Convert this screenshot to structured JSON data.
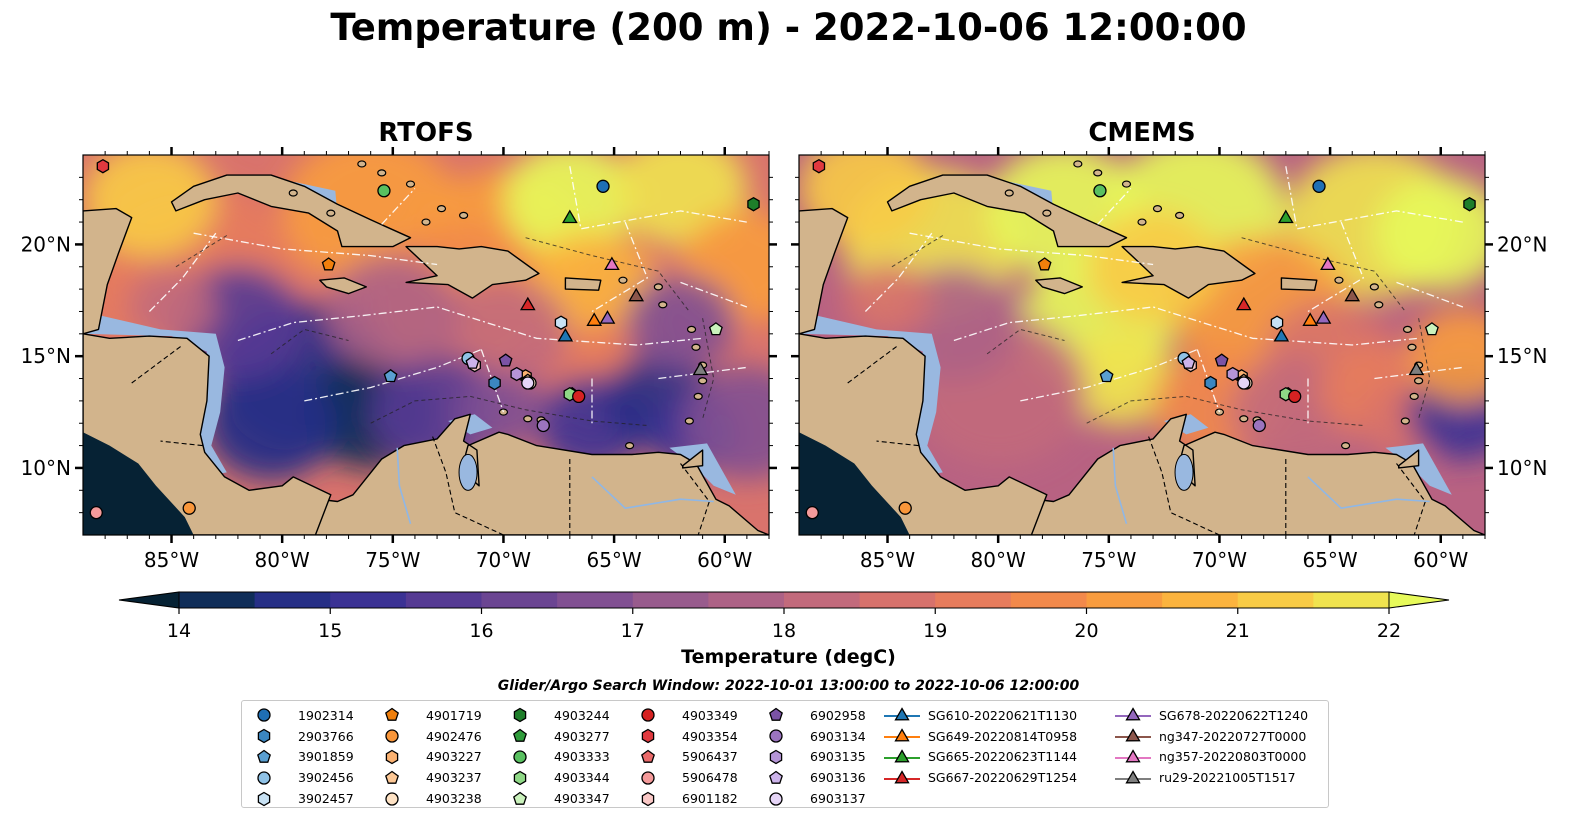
{
  "title": "Temperature (200 m) - 2022-10-06 12:00:00",
  "panels": [
    {
      "title": "RTOFS"
    },
    {
      "title": "CMEMS"
    }
  ],
  "map_axes": {
    "lon_ticks": [
      "85°W",
      "80°W",
      "75°W",
      "70°W",
      "65°W",
      "60°W"
    ],
    "lat_ticks": [
      "20°N",
      "15°N",
      "10°N"
    ],
    "lon_range": [
      -89,
      -58
    ],
    "lat_range": [
      7,
      24
    ]
  },
  "colorbar": {
    "label": "Temperature (degC)",
    "ticks": [
      "14",
      "15",
      "16",
      "17",
      "18",
      "19",
      "20",
      "21",
      "22"
    ],
    "range": [
      14,
      22
    ],
    "colormap": "thermal",
    "colors": [
      "#062234",
      "#0f2d58",
      "#262f86",
      "#3b3294",
      "#553a93",
      "#6b4592",
      "#815092",
      "#985b8d",
      "#ad6286",
      "#c26a7c",
      "#d7726c",
      "#e77c5c",
      "#f2894b",
      "#f89c3f",
      "#fbb33e",
      "#f8cb46",
      "#f0e34f",
      "#e7fa5a"
    ]
  },
  "legend": {
    "title": "Glider/Argo Search Window: 2022-10-01 13:00:00 to 2022-10-06 12:00:00",
    "argo": [
      {
        "label": "1902314",
        "marker": "circle",
        "color": "#1f6fb4"
      },
      {
        "label": "2903766",
        "marker": "hexagon",
        "color": "#3b86c0"
      },
      {
        "label": "3901859",
        "marker": "pentagon",
        "color": "#5a9fd1"
      },
      {
        "label": "3902456",
        "marker": "circle",
        "color": "#8fc2e6"
      },
      {
        "label": "3902457",
        "marker": "hexagon",
        "color": "#c8e2f4"
      },
      {
        "label": "4901719",
        "marker": "pentagon",
        "color": "#f07f0c"
      },
      {
        "label": "4902476",
        "marker": "circle",
        "color": "#f9963a"
      },
      {
        "label": "4903227",
        "marker": "hexagon",
        "color": "#fbb272"
      },
      {
        "label": "4903237",
        "marker": "pentagon",
        "color": "#fdc896"
      },
      {
        "label": "4903238",
        "marker": "circle",
        "color": "#fee2c4"
      },
      {
        "label": "4903244",
        "marker": "hexagon",
        "color": "#1e7e2a"
      },
      {
        "label": "4903277",
        "marker": "pentagon",
        "color": "#2f9c3b"
      },
      {
        "label": "4903333",
        "marker": "circle",
        "color": "#59c060"
      },
      {
        "label": "4903344",
        "marker": "hexagon",
        "color": "#8fd886"
      },
      {
        "label": "4903347",
        "marker": "pentagon",
        "color": "#caf2bc"
      },
      {
        "label": "4903349",
        "marker": "circle",
        "color": "#d62222"
      },
      {
        "label": "4903354",
        "marker": "hexagon",
        "color": "#e0393f"
      },
      {
        "label": "5906437",
        "marker": "pentagon",
        "color": "#ea6a6a"
      },
      {
        "label": "5906478",
        "marker": "circle",
        "color": "#f49a9a"
      },
      {
        "label": "6901182",
        "marker": "hexagon",
        "color": "#fac8c6"
      },
      {
        "label": "6902958",
        "marker": "pentagon",
        "color": "#7b53a5"
      },
      {
        "label": "6903134",
        "marker": "circle",
        "color": "#9b74bf"
      },
      {
        "label": "6903135",
        "marker": "hexagon",
        "color": "#b595d6"
      },
      {
        "label": "6903136",
        "marker": "pentagon",
        "color": "#ccb3ea"
      },
      {
        "label": "6903137",
        "marker": "circle",
        "color": "#e6d5f7"
      }
    ],
    "gliders": [
      {
        "label": "SG610-20220621T1130",
        "color": "#1f77b4"
      },
      {
        "label": "SG649-20220814T0958",
        "color": "#ff7f0e"
      },
      {
        "label": "SG665-20220623T1144",
        "color": "#2ca02c"
      },
      {
        "label": "SG667-20220629T1254",
        "color": "#d62728"
      },
      {
        "label": "SG678-20220622T1240",
        "color": "#9467bd"
      },
      {
        "label": "ng347-20220727T0000",
        "color": "#8c564b"
      },
      {
        "label": "ng357-20220803T0000",
        "color": "#e377c2"
      },
      {
        "label": "ru29-20221005T1517",
        "color": "#7f7f7f"
      }
    ]
  },
  "markers": [
    {
      "id": "1902314",
      "lon": -65.5,
      "lat": 22.6
    },
    {
      "id": "2903766",
      "lon": -70.4,
      "lat": 13.8
    },
    {
      "id": "3901859",
      "lon": -75.1,
      "lat": 14.1
    },
    {
      "id": "3902456",
      "lon": -71.6,
      "lat": 14.9
    },
    {
      "id": "3902457",
      "lon": -67.4,
      "lat": 16.5
    },
    {
      "id": "4901719",
      "lon": -77.9,
      "lat": 19.1
    },
    {
      "id": "4902476",
      "lon": -84.2,
      "lat": 8.2
    },
    {
      "id": "4903227",
      "lon": -69.0,
      "lat": 14.1
    },
    {
      "id": "4903237",
      "lon": -68.9,
      "lat": 13.9
    },
    {
      "id": "4903238",
      "lon": -68.8,
      "lat": 13.8
    },
    {
      "id": "4903244",
      "lon": -58.7,
      "lat": 21.8
    },
    {
      "id": "4903277",
      "lon": -66.9,
      "lat": 13.3
    },
    {
      "id": "4903333",
      "lon": -75.4,
      "lat": 22.4
    },
    {
      "id": "4903344",
      "lon": -67.0,
      "lat": 13.3
    },
    {
      "id": "4903347",
      "lon": -60.4,
      "lat": 16.2
    },
    {
      "id": "4903349",
      "lon": -66.6,
      "lat": 13.2
    },
    {
      "id": "4903354",
      "lon": -88.1,
      "lat": 23.5
    },
    {
      "id": "5906437",
      "lon": -71.4,
      "lat": 14.7
    },
    {
      "id": "5906478",
      "lon": -88.4,
      "lat": 8.0
    },
    {
      "id": "6901182",
      "lon": -71.3,
      "lat": 14.6
    },
    {
      "id": "6902958",
      "lon": -69.9,
      "lat": 14.8
    },
    {
      "id": "6903134",
      "lon": -68.2,
      "lat": 11.9
    },
    {
      "id": "6903135",
      "lon": -69.4,
      "lat": 14.2
    },
    {
      "id": "6903136",
      "lon": -71.4,
      "lat": 14.7
    },
    {
      "id": "6903137",
      "lon": -68.9,
      "lat": 13.8
    }
  ],
  "glider_positions": [
    {
      "id": "SG610-20220621T1130",
      "lon": -67.2,
      "lat": 15.9
    },
    {
      "id": "SG649-20220814T0958",
      "lon": -65.9,
      "lat": 16.6
    },
    {
      "id": "SG665-20220623T1144",
      "lon": -67.0,
      "lat": 21.2
    },
    {
      "id": "SG667-20220629T1254",
      "lon": -68.9,
      "lat": 17.3
    },
    {
      "id": "SG678-20220622T1240",
      "lon": -65.3,
      "lat": 16.7
    },
    {
      "id": "ng347-20220727T0000",
      "lon": -64.0,
      "lat": 17.7
    },
    {
      "id": "ng357-20220803T0000",
      "lon": -65.1,
      "lat": 19.1
    },
    {
      "id": "ru29-20221005T1517",
      "lon": -61.1,
      "lat": 14.4
    }
  ]
}
